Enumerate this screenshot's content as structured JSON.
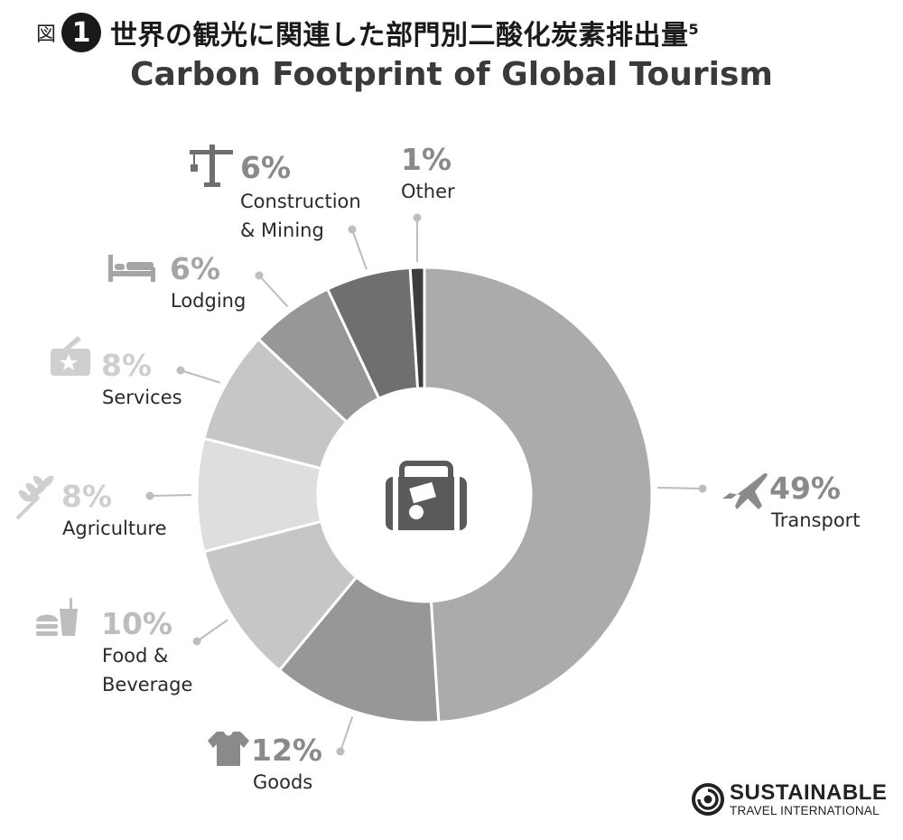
{
  "header": {
    "fig_label": "図",
    "fig_number": "1",
    "title_jp": "世界の観光に関連した部門別二酸化炭素排出量",
    "title_sup": "5",
    "title_en": "Carbon Footprint of Global Tourism"
  },
  "chart_data": {
    "type": "pie",
    "style": "donut",
    "title": "Carbon Footprint of Global Tourism",
    "grid": false,
    "legend": "none (labels around chart)",
    "center_icon": "suitcase-icon",
    "slices": [
      {
        "label": "Transport",
        "value": 49,
        "value_label": "49%",
        "color": "#ababab",
        "icon": "airplane-icon"
      },
      {
        "label": "Goods",
        "value": 12,
        "value_label": "12%",
        "color": "#979797",
        "icon": "tshirt-icon"
      },
      {
        "label": "Food &\nBeverage",
        "value": 10,
        "value_label": "10%",
        "color": "#c6c6c6",
        "icon": "fastfood-icon"
      },
      {
        "label": "Agriculture",
        "value": 8,
        "value_label": "8%",
        "color": "#dedede",
        "icon": "wheat-icon"
      },
      {
        "label": "Services",
        "value": 8,
        "value_label": "8%",
        "color": "#c6c6c6",
        "icon": "services-icon"
      },
      {
        "label": "Lodging",
        "value": 6,
        "value_label": "6%",
        "color": "#979797",
        "icon": "bed-icon"
      },
      {
        "label": "Construction\n& Mining",
        "value": 6,
        "value_label": "6%",
        "color": "#6f6f6f",
        "icon": "crane-icon"
      },
      {
        "label": "Other",
        "value": 1,
        "value_label": "1%",
        "color": "#3e3e3e",
        "icon": ""
      }
    ]
  },
  "brand": {
    "name_line1": "SUSTAINABLE",
    "name_line2": "TRAVEL INTERNATIONAL"
  }
}
